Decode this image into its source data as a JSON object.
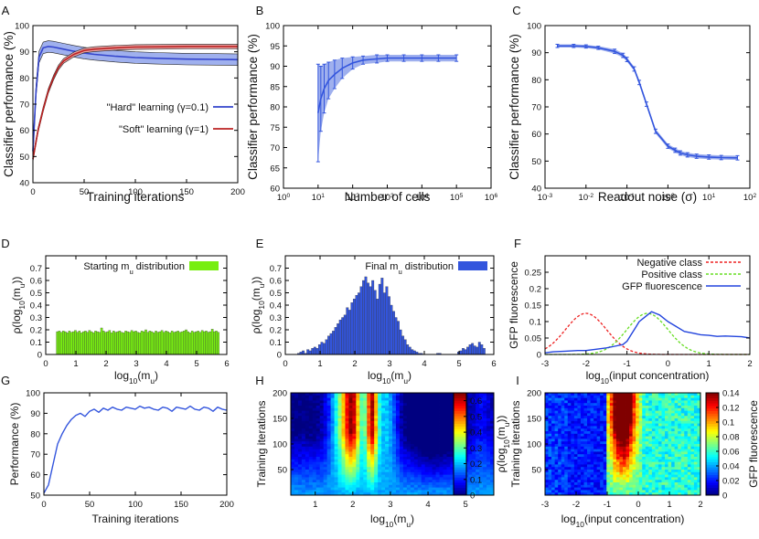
{
  "colors": {
    "hard": "#3344cc",
    "soft": "#bb2222",
    "blue": "#3355dd",
    "band": "#9fb0ee",
    "band_red": "#e8a0a0",
    "green": "#77ee11",
    "neg": "#ee2222",
    "pos": "#66dd22",
    "gfp": "#2244dd"
  },
  "chart_data": [
    {
      "id": "A",
      "type": "line",
      "xlabel": "Training iterations",
      "ylabel": "Classifier performance (%)",
      "xlim": [
        0,
        200
      ],
      "ylim": [
        40,
        100
      ],
      "xticks": [
        "0",
        "50",
        "100",
        "150",
        "200"
      ],
      "yticks": [
        "40",
        "50",
        "60",
        "70",
        "80",
        "90",
        "100"
      ],
      "series": [
        {
          "name": "\"Hard\" learning  (γ=0.1)",
          "color_key": "hard",
          "x": [
            0,
            3,
            6,
            10,
            15,
            20,
            30,
            40,
            50,
            60,
            80,
            100,
            120,
            150,
            180,
            200
          ],
          "y": [
            52,
            75,
            88,
            91.5,
            92,
            91.8,
            91,
            90.2,
            89.5,
            89,
            88.3,
            87.8,
            87.5,
            87.2,
            87.1,
            87
          ],
          "band": 2.2
        },
        {
          "name": "\"Soft\" learning  (γ=1)",
          "color_key": "soft",
          "x": [
            0,
            5,
            10,
            15,
            20,
            25,
            30,
            40,
            50,
            60,
            80,
            100,
            150,
            200
          ],
          "y": [
            49,
            60,
            68,
            75,
            80,
            84,
            86.5,
            89,
            90.5,
            91,
            91.5,
            91.8,
            92,
            92
          ],
          "band": 0.9
        }
      ]
    },
    {
      "id": "B",
      "type": "line",
      "xlabel": "Number of cells",
      "ylabel": "Classifier performance (%)",
      "xscale": "log",
      "xlim": [
        0,
        6
      ],
      "ylim": [
        60,
        100
      ],
      "xticks": [
        "10",
        "10",
        "10",
        "10",
        "10",
        "10",
        "10"
      ],
      "xtick_exps": [
        "0",
        "1",
        "2",
        "3",
        "4",
        "5",
        "6"
      ],
      "yticks": [
        "60",
        "65",
        "70",
        "75",
        "80",
        "85",
        "90",
        "95",
        "100"
      ],
      "series": [
        {
          "name": "performance",
          "color_key": "blue",
          "x": [
            10,
            12,
            15,
            20,
            30,
            50,
            100,
            200,
            500,
            1000,
            3000,
            10000,
            30000,
            100000
          ],
          "y": [
            78.5,
            82,
            84.5,
            86.5,
            88,
            89.5,
            90.8,
            91.5,
            91.8,
            92,
            92,
            92,
            92,
            92
          ],
          "err": [
            12,
            8,
            6,
            4.5,
            3.5,
            2.5,
            1.5,
            1,
            1,
            0.8,
            0.8,
            0.8,
            0.8,
            0.8
          ]
        }
      ]
    },
    {
      "id": "C",
      "type": "line",
      "xlabel": "Readout noise (σ)",
      "ylabel": "Classifier performance (%)",
      "xscale": "log",
      "xlim": [
        -3,
        2
      ],
      "ylim": [
        40,
        100
      ],
      "xticks": [
        "10",
        "10",
        "10",
        "10",
        "10",
        "10"
      ],
      "xtick_exps": [
        "-3",
        "-2",
        "-1",
        "0",
        "1",
        "2"
      ],
      "yticks": [
        "40",
        "50",
        "60",
        "70",
        "80",
        "90",
        "100"
      ],
      "series": [
        {
          "name": "performance",
          "color_key": "blue",
          "x": [
            0.002,
            0.005,
            0.01,
            0.02,
            0.05,
            0.08,
            0.1,
            0.15,
            0.2,
            0.3,
            0.5,
            1,
            1.5,
            2,
            3,
            5,
            10,
            20,
            50
          ],
          "y": [
            92.5,
            92.5,
            92.3,
            91.8,
            90.5,
            89,
            87.5,
            84,
            79,
            71,
            61,
            55.5,
            54,
            53,
            52.3,
            51.8,
            51.5,
            51.3,
            51.2
          ],
          "err": [
            0.6,
            0.6,
            0.6,
            0.6,
            0.8,
            0.8,
            0.8,
            0.8,
            0.8,
            0.8,
            0.8,
            0.8,
            0.8,
            0.8,
            0.8,
            0.8,
            0.8,
            0.8,
            0.8
          ]
        }
      ]
    },
    {
      "id": "D",
      "type": "bar",
      "xlabel": "log10(mu)",
      "ylabel": "ρ(log10(mu))",
      "legend": "Starting mu distribution",
      "xlim": [
        0,
        6
      ],
      "ylim": [
        0,
        0.8
      ],
      "xticks": [
        "0",
        "1",
        "2",
        "3",
        "4",
        "5",
        "6"
      ],
      "yticks": [
        "0",
        "0.1",
        "0.2",
        "0.3",
        "0.4",
        "0.5",
        "0.6",
        "0.7"
      ],
      "bin_start": 0.35,
      "bin_width": 0.0667,
      "values": [
        0.185,
        0.19,
        0.18,
        0.19,
        0.185,
        0.175,
        0.19,
        0.18,
        0.185,
        0.195,
        0.18,
        0.19,
        0.175,
        0.185,
        0.19,
        0.18,
        0.195,
        0.185,
        0.175,
        0.19,
        0.185,
        0.18,
        0.215,
        0.19,
        0.18,
        0.185,
        0.195,
        0.175,
        0.19,
        0.18,
        0.185,
        0.19,
        0.18,
        0.175,
        0.19,
        0.185,
        0.18,
        0.195,
        0.185,
        0.19,
        0.18,
        0.175,
        0.19,
        0.185,
        0.2,
        0.18,
        0.19,
        0.185,
        0.175,
        0.19,
        0.18,
        0.185,
        0.195,
        0.18,
        0.19,
        0.185,
        0.175,
        0.19,
        0.18,
        0.185,
        0.19,
        0.18,
        0.185,
        0.19,
        0.2,
        0.185,
        0.175,
        0.19,
        0.18,
        0.185,
        0.19,
        0.18,
        0.195,
        0.185,
        0.19,
        0.18,
        0.185,
        0.205,
        0.185,
        0.19,
        0.18
      ]
    },
    {
      "id": "E",
      "type": "bar",
      "xlabel": "log10(mu)",
      "ylabel": "ρ(log10(mu))",
      "legend": "Final mu distribution",
      "xlim": [
        0,
        6
      ],
      "ylim": [
        0,
        0.8
      ],
      "xticks": [
        "0",
        "1",
        "2",
        "3",
        "4",
        "5",
        "6"
      ],
      "yticks": [
        "0",
        "0.1",
        "0.2",
        "0.3",
        "0.4",
        "0.5",
        "0.6",
        "0.7"
      ],
      "bin_start": 0.35,
      "bin_width": 0.0667,
      "values": [
        0.01,
        0.02,
        0.03,
        0.01,
        0.04,
        0.03,
        0.05,
        0.06,
        0.05,
        0.08,
        0.1,
        0.09,
        0.12,
        0.15,
        0.17,
        0.19,
        0.22,
        0.25,
        0.28,
        0.3,
        0.32,
        0.38,
        0.36,
        0.42,
        0.45,
        0.48,
        0.5,
        0.55,
        0.6,
        0.63,
        0.58,
        0.55,
        0.6,
        0.52,
        0.45,
        0.57,
        0.62,
        0.5,
        0.55,
        0.47,
        0.4,
        0.35,
        0.3,
        0.27,
        0.2,
        0.15,
        0.12,
        0.08,
        0.06,
        0.04,
        0.03,
        0.02,
        0.01,
        0.01,
        0,
        0,
        0,
        0,
        0,
        0,
        0.01,
        0.01,
        0,
        0,
        0,
        0,
        0,
        0,
        0,
        0.02,
        0.03,
        0.05,
        0.04,
        0.06,
        0.08,
        0.09,
        0.07,
        0.06,
        0.1,
        0.08,
        0.05
      ]
    },
    {
      "id": "F",
      "type": "line",
      "xlabel": "log10(input concentration)",
      "ylabel": "GFP fluorescence",
      "xlim": [
        -3,
        2
      ],
      "ylim": [
        0,
        0.3
      ],
      "xticks": [
        "-3",
        "-2",
        "-1",
        "0",
        "1",
        "2"
      ],
      "yticks": [
        "0",
        "0.05",
        "0.1",
        "0.15",
        "0.2",
        "0.25"
      ],
      "series": [
        {
          "name": "Negative class",
          "color_key": "neg",
          "dash": true,
          "gauss_mu": -2,
          "gauss_sigma": 0.5,
          "gauss_peak": 0.125
        },
        {
          "name": "Positive class",
          "color_key": "pos",
          "dash": true,
          "gauss_mu": -0.5,
          "gauss_sigma": 0.5,
          "gauss_peak": 0.125
        },
        {
          "name": "GFP fluorescence",
          "color_key": "gfp",
          "dash": false,
          "x": [
            -3,
            -2.8,
            -2.5,
            -2.2,
            -2,
            -1.8,
            -1.5,
            -1.3,
            -1.1,
            -1,
            -0.9,
            -0.8,
            -0.7,
            -0.6,
            -0.5,
            -0.4,
            -0.3,
            -0.2,
            -0.1,
            0,
            0.2,
            0.4,
            0.6,
            0.8,
            1,
            1.2,
            1.4,
            1.6,
            1.8,
            2
          ],
          "y": [
            0.005,
            0.008,
            0.01,
            0.012,
            0.012,
            0.015,
            0.02,
            0.025,
            0.03,
            0.04,
            0.06,
            0.08,
            0.1,
            0.11,
            0.12,
            0.13,
            0.125,
            0.12,
            0.11,
            0.1,
            0.085,
            0.07,
            0.065,
            0.06,
            0.058,
            0.055,
            0.056,
            0.055,
            0.054,
            0.05
          ]
        }
      ]
    },
    {
      "id": "G",
      "type": "line",
      "xlabel": "Training iterations",
      "ylabel": "Performance (%)",
      "xlim": [
        0,
        200
      ],
      "ylim": [
        50,
        100
      ],
      "xticks": [
        "0",
        "50",
        "100",
        "150",
        "200"
      ],
      "yticks": [
        "50",
        "60",
        "70",
        "80",
        "90",
        "100"
      ],
      "series": [
        {
          "name": "performance",
          "color_key": "blue",
          "x": [
            0,
            5,
            10,
            15,
            20,
            25,
            30,
            35,
            40,
            45,
            50,
            55,
            60,
            65,
            70,
            75,
            80,
            85,
            90,
            95,
            100,
            105,
            110,
            115,
            120,
            125,
            130,
            135,
            140,
            145,
            150,
            155,
            160,
            165,
            170,
            175,
            180,
            185,
            190,
            195,
            200
          ],
          "y": [
            51,
            55,
            65,
            75,
            80,
            84,
            87,
            89,
            90,
            88.5,
            91,
            92,
            90.5,
            92.5,
            91.5,
            93,
            92,
            91.5,
            93,
            92.5,
            92,
            93.5,
            92.5,
            93,
            92,
            91.5,
            93,
            92.5,
            91,
            93,
            92.5,
            92,
            93.5,
            92,
            91.5,
            93,
            92.5,
            91,
            93,
            92,
            91.5
          ]
        }
      ]
    },
    {
      "id": "H",
      "type": "heatmap",
      "xlabel": "log10(mu)",
      "ylabel": "Training iterations",
      "colorbar_label": "ρ(log10(mu))",
      "xlim": [
        0.35,
        5.75
      ],
      "ylim": [
        0,
        200
      ],
      "clim": [
        0,
        0.65
      ],
      "xticks": [
        "1",
        "2",
        "3",
        "4",
        "5"
      ],
      "yticks": [
        "50",
        "100",
        "150",
        "200"
      ],
      "cbar_ticks": [
        "0",
        "0.1",
        "0.2",
        "0.3",
        "0.4",
        "0.5",
        "0.6"
      ]
    },
    {
      "id": "I",
      "type": "heatmap",
      "xlabel": "log10(input concentration)",
      "ylabel": "Training iterations",
      "colorbar_label": "GFP fluorescence",
      "xlim": [
        -3,
        2
      ],
      "ylim": [
        0,
        200
      ],
      "clim": [
        0,
        0.14
      ],
      "xticks": [
        "-3",
        "-2",
        "-1",
        "0",
        "1",
        "2"
      ],
      "yticks": [
        "50",
        "100",
        "150",
        "200"
      ],
      "cbar_ticks": [
        "0",
        "0.02",
        "0.04",
        "0.06",
        "0.08",
        "0.1",
        "0.12",
        "0.14"
      ]
    }
  ]
}
